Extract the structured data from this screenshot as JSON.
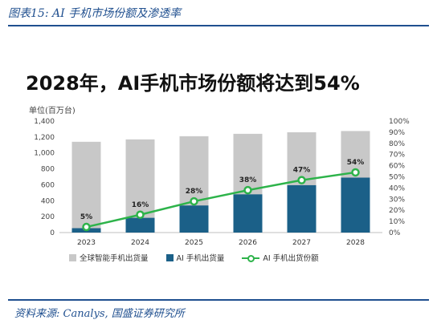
{
  "figure_title": "图表15:  AI 手机市场份额及渗透率",
  "source": "资料来源: Canalys, 国盛证券研究所",
  "colors": {
    "total": "#c8c8c8",
    "ai": "#1b6088",
    "share": "#2db34a",
    "accent": "#1f4f8f"
  },
  "chart_data": {
    "type": "bar",
    "title": "2028年，AI手机市场份额将达到54%",
    "ylabel": "单位(百万台)",
    "categories": [
      "2023",
      "2024",
      "2025",
      "2026",
      "2027",
      "2028"
    ],
    "ylim": [
      0,
      1400
    ],
    "y2lim": [
      0,
      1.0
    ],
    "yticks": [
      "0",
      "200",
      "400",
      "600",
      "800",
      "1,000",
      "1,200",
      "1,400"
    ],
    "y2ticks": [
      "0%",
      "10%",
      "20%",
      "30%",
      "40%",
      "50%",
      "60%",
      "70%",
      "80%",
      "90%",
      "100%"
    ],
    "series": [
      {
        "name": "全球智能手机出货量",
        "type": "bar",
        "axis": "left",
        "values": [
          1140,
          1170,
          1210,
          1240,
          1260,
          1275
        ]
      },
      {
        "name": "AI 手机出货量",
        "type": "bar",
        "axis": "left",
        "values": [
          55,
          185,
          340,
          480,
          595,
          690
        ]
      },
      {
        "name": "AI 手机出货份额",
        "type": "line",
        "axis": "right",
        "values": [
          0.05,
          0.16,
          0.28,
          0.38,
          0.47,
          0.54
        ],
        "labels": [
          "5%",
          "16%",
          "28%",
          "38%",
          "47%",
          "54%"
        ]
      }
    ],
    "legend_position": "bottom",
    "grid": false
  }
}
